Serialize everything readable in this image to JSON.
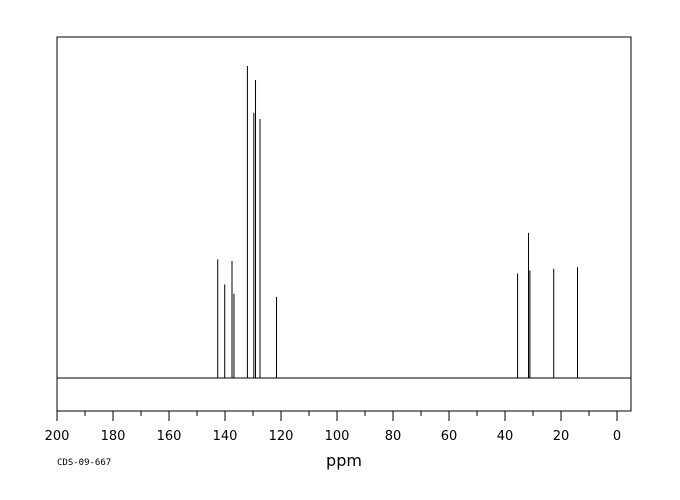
{
  "chart_data": {
    "type": "line",
    "subtype": "nmr-stick-spectrum",
    "xlabel": "ppm",
    "x_reversed": true,
    "xlim": [
      200,
      -5
    ],
    "ylim": [
      0,
      100
    ],
    "x_ticks": [
      200,
      180,
      160,
      140,
      120,
      100,
      80,
      60,
      40,
      20,
      0
    ],
    "x_minor_step": 10,
    "grid": false,
    "footer_code": "CDS-09-667",
    "baseline_y": 0,
    "peaks": [
      {
        "x": 142.6,
        "y": 38
      },
      {
        "x": 140.1,
        "y": 30
      },
      {
        "x": 137.5,
        "y": 37.5
      },
      {
        "x": 136.8,
        "y": 27
      },
      {
        "x": 132.0,
        "y": 100
      },
      {
        "x": 129.7,
        "y": 85
      },
      {
        "x": 129.1,
        "y": 95.5
      },
      {
        "x": 127.5,
        "y": 83
      },
      {
        "x": 121.6,
        "y": 26
      },
      {
        "x": 35.5,
        "y": 33.5
      },
      {
        "x": 31.6,
        "y": 46.5
      },
      {
        "x": 31.1,
        "y": 34.5
      },
      {
        "x": 22.6,
        "y": 35
      },
      {
        "x": 14.1,
        "y": 35.5
      }
    ]
  }
}
